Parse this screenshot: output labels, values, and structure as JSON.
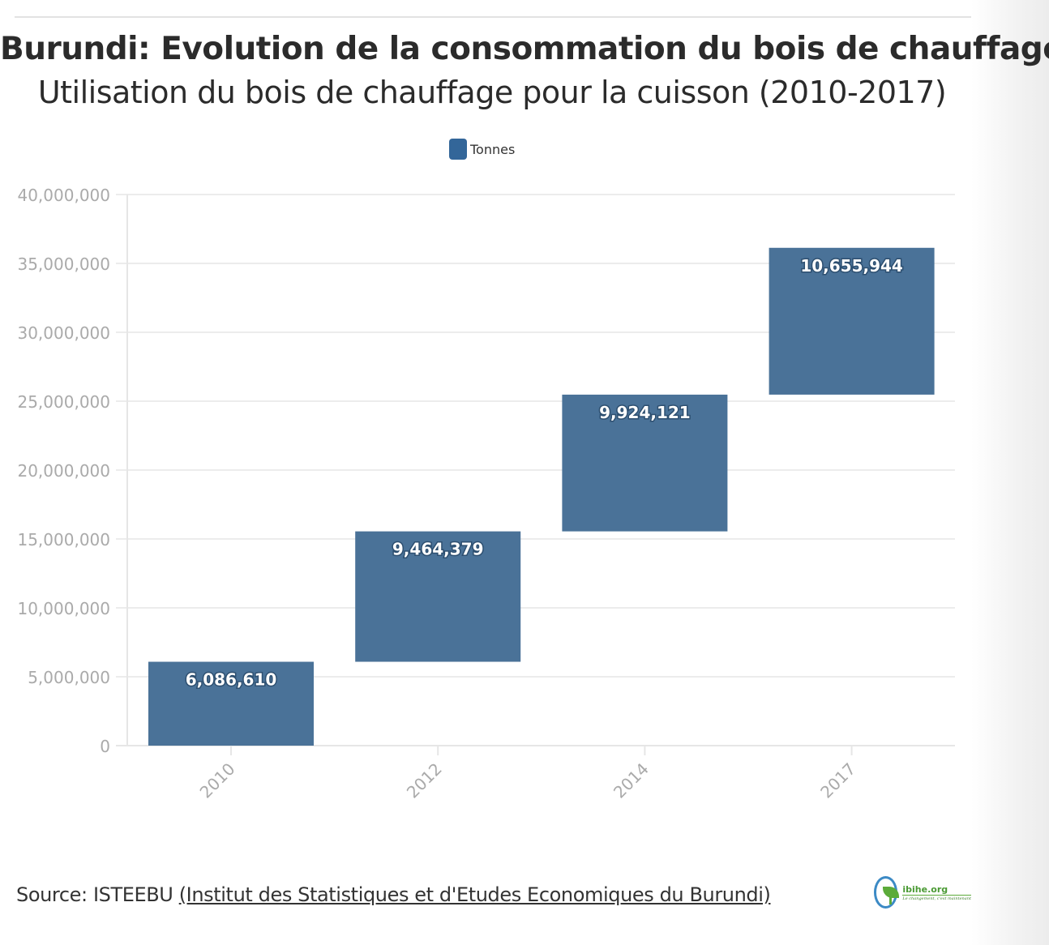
{
  "title": "Burundi: Evolution de la consommation du bois de chauffage",
  "subtitle": "Utilisation du bois de chauffage pour la cuisson (2010-2017)",
  "legend": {
    "label": "Tonnes",
    "color": "#336699"
  },
  "source": {
    "prefix": "Source: ISTEEBU ",
    "link_text": "(Institut des Statistiques et d'Etudes Economiques du Burundi)"
  },
  "logo": {
    "name": "ibihe.org",
    "tagline": "Le changement, c'est maintenant",
    "icon": "leaf-globe-icon"
  },
  "chart_data": {
    "type": "waterfall",
    "categories": [
      "2010",
      "2012",
      "2014",
      "2017"
    ],
    "series": [
      {
        "name": "Tonnes",
        "values": [
          6086610,
          9464379,
          9924121,
          10655944
        ]
      }
    ],
    "data_labels": [
      "6,086,610",
      "9,464,379",
      "9,924,121",
      "10,655,944"
    ],
    "ylim": [
      0,
      40000000
    ],
    "yticks": [
      0,
      5000000,
      10000000,
      15000000,
      20000000,
      25000000,
      30000000,
      35000000,
      40000000
    ],
    "ytick_labels": [
      "0",
      "5,000,000",
      "10,000,000",
      "15,000,000",
      "20,000,000",
      "25,000,000",
      "30,000,000",
      "35,000,000",
      "40,000,000"
    ],
    "grid": true,
    "legend_position": "top-center",
    "bar_color": "#4a7298",
    "xlabel": "",
    "ylabel": ""
  }
}
